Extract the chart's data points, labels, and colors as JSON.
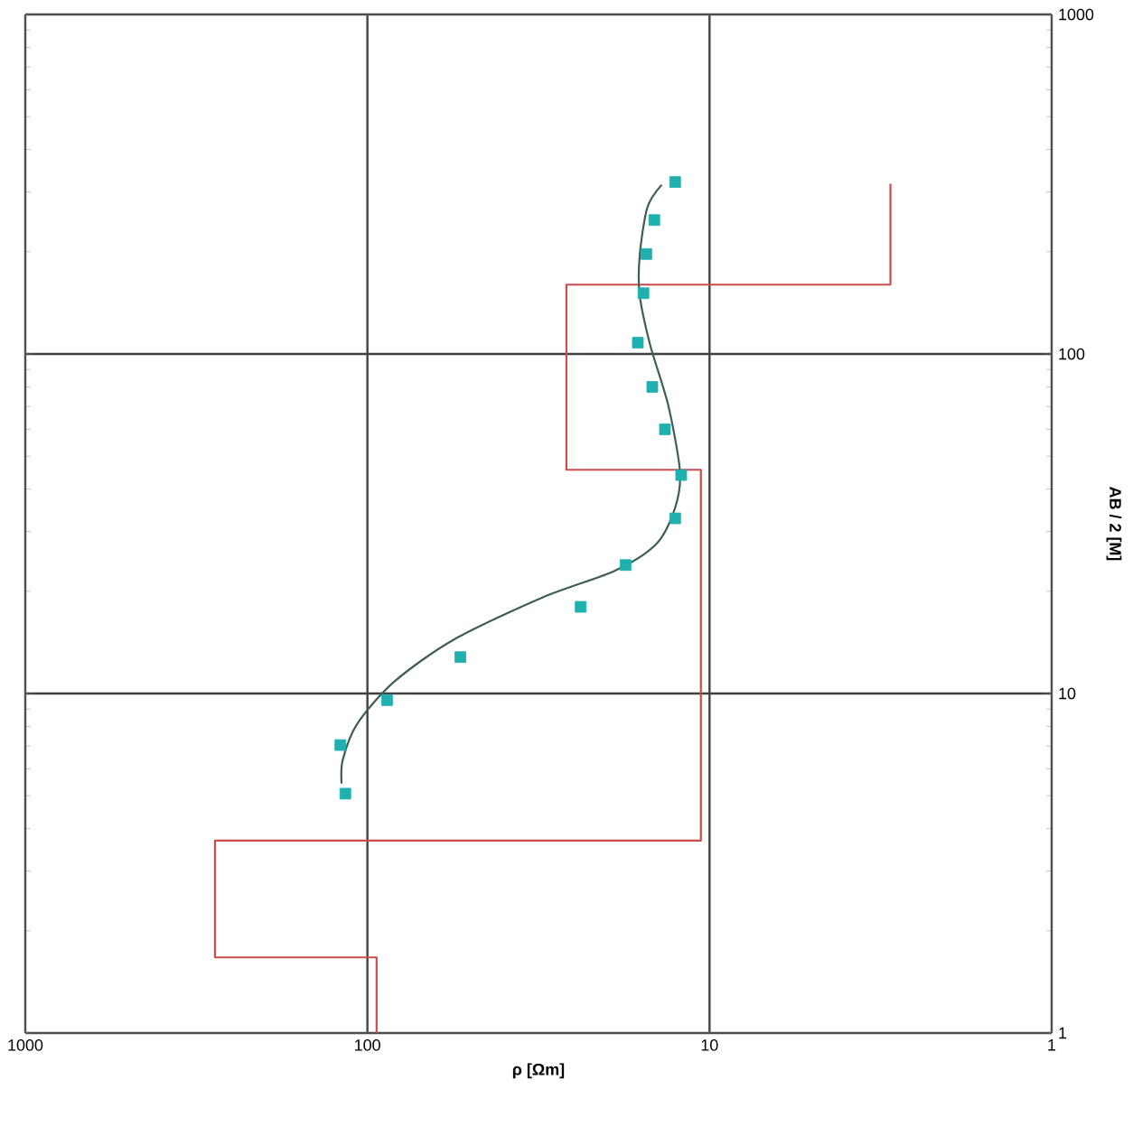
{
  "chart_data": {
    "type": "scatter",
    "xlabel": "ρ [Ωm]",
    "ylabel": "AB / 2 [M]",
    "log": "xy",
    "grid": true,
    "xlim": [
      1000,
      1
    ],
    "ylim": [
      1,
      1000
    ],
    "xticks": [
      1000,
      100,
      10,
      1
    ],
    "yticks": [
      1,
      10,
      100,
      1000
    ],
    "series": [
      {
        "type": "line",
        "color": "#cc4b4b",
        "marker": "none",
        "x": [
          94,
          94,
          279,
          279,
          10.6,
          10.6,
          26.2,
          26.2,
          2.96,
          2.96
        ],
        "values": [
          1,
          1.67,
          1.67,
          3.69,
          3.69,
          45.6,
          45.6,
          160,
          160,
          317
        ]
      },
      {
        "type": "line",
        "color": "#3f5e52",
        "marker": "none",
        "x": [
          119,
          118,
          107,
          83.8,
          56,
          30.7,
          18.9,
          14.3,
          12.6,
          12.2,
          13.2,
          14.9,
          16.0,
          16.0,
          15.2,
          13.8
        ],
        "values": [
          5.43,
          6.39,
          8.15,
          10.8,
          14.4,
          19.2,
          23.0,
          27.6,
          35.3,
          45,
          70.5,
          106,
          149,
          195,
          270,
          315
        ]
      },
      {
        "color": "#1fb0b0",
        "marker": "square",
        "x": [
          116,
          120,
          87.6,
          53.5,
          23.8,
          17.6,
          12.6,
          12.1,
          13.5,
          14.7,
          16.2,
          15.6,
          15.3,
          14.5,
          12.6
        ],
        "values": [
          5.07,
          7.05,
          9.56,
          12.8,
          18.0,
          23.9,
          32.8,
          44,
          60,
          80,
          108,
          151,
          197,
          248,
          321
        ]
      }
    ]
  }
}
